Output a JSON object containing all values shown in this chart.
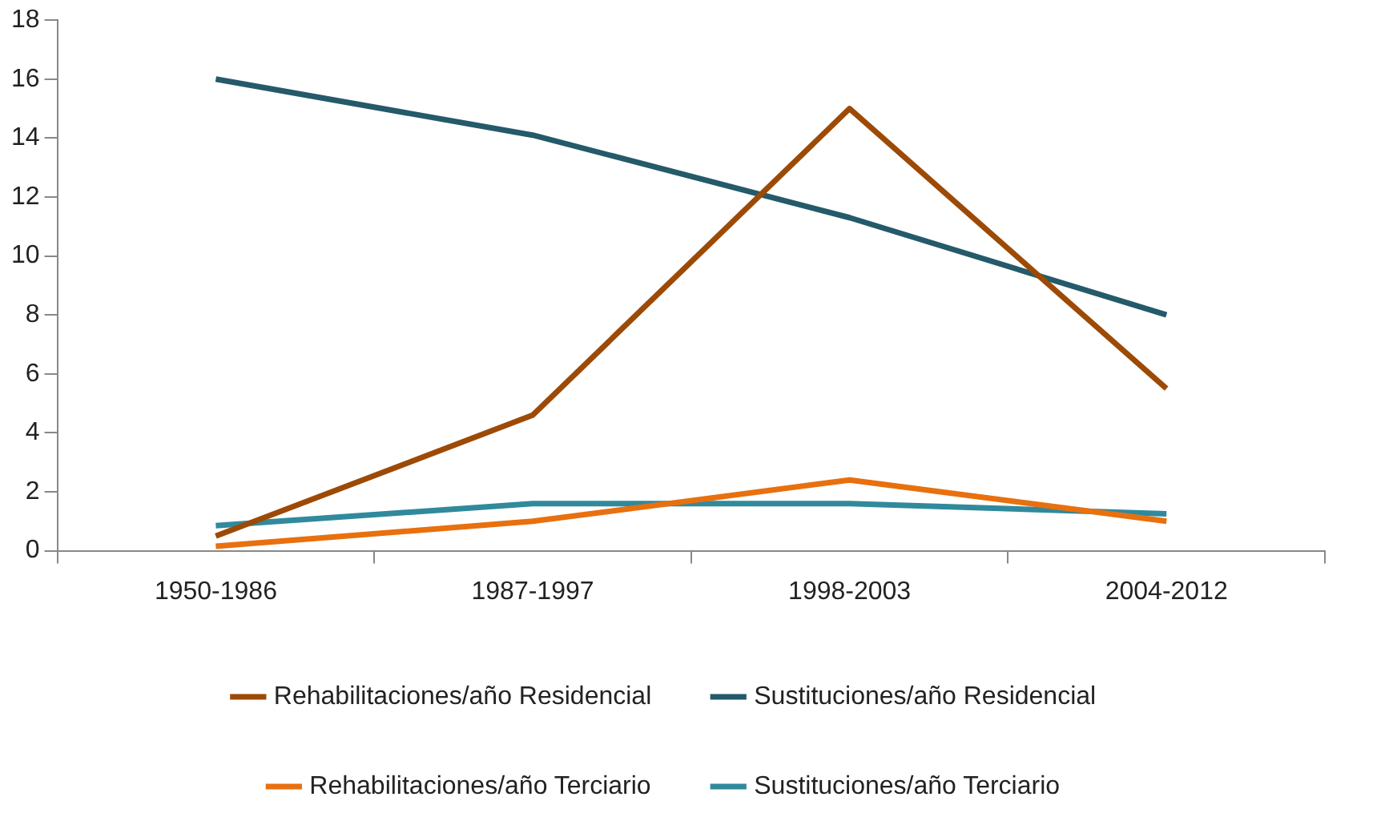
{
  "chart_data": {
    "type": "line",
    "categories": [
      "1950-1986",
      "1987-1997",
      "1998-2003",
      "2004-2012"
    ],
    "series": [
      {
        "name": "Rehabilitaciones/año Residencial",
        "color": "#9c4a06",
        "values": [
          0.5,
          4.6,
          15.0,
          5.5
        ]
      },
      {
        "name": "Sustituciones/año Residencial",
        "color": "#245a6a",
        "values": [
          16,
          14.1,
          11.3,
          8
        ]
      },
      {
        "name": "Rehabilitaciones/año Terciario",
        "color": "#e8700f",
        "values": [
          0.15,
          1.0,
          2.4,
          1.0
        ]
      },
      {
        "name": "Sustituciones/año Terciario",
        "color": "#31899c",
        "values": [
          0.85,
          1.6,
          1.6,
          1.25
        ]
      }
    ],
    "ylim": [
      0,
      18
    ],
    "yticks": [
      0,
      2,
      4,
      6,
      8,
      10,
      12,
      14,
      16,
      18
    ],
    "grid": false,
    "legend": "bottom",
    "marker": "none",
    "line_style": "solid"
  }
}
